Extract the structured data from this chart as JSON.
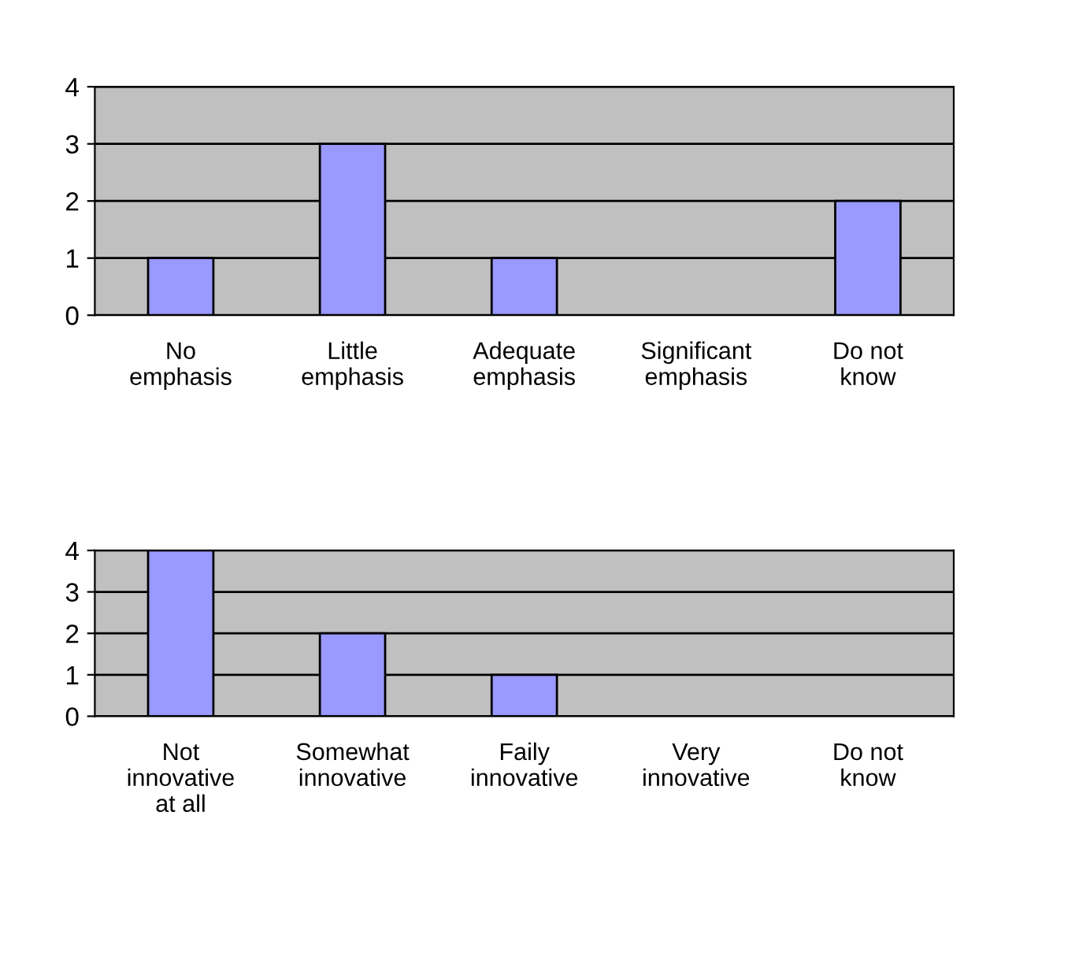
{
  "chart_data": [
    {
      "type": "bar",
      "categories": [
        "No\nemphasis",
        "Little\nemphasis",
        "Adequate\nemphasis",
        "Significant\nemphasis",
        "Do not\nknow"
      ],
      "values": [
        1,
        3,
        1,
        0,
        2
      ],
      "color": "#9999ff",
      "ylim": [
        0,
        4
      ],
      "yticks": [
        0,
        1,
        2,
        3,
        4
      ],
      "grid": "y",
      "legend": false
    },
    {
      "type": "bar",
      "categories": [
        "Not\ninnovative\nat all",
        "Somewhat\ninnovative",
        "Faily\ninnovative",
        "Very\ninnovative",
        "Do not\nknow"
      ],
      "values": [
        4,
        2,
        1,
        0,
        0
      ],
      "color": "#9999ff",
      "ylim": [
        0,
        4
      ],
      "yticks": [
        0,
        1,
        2,
        3,
        4
      ],
      "grid": "y",
      "legend": false
    }
  ]
}
